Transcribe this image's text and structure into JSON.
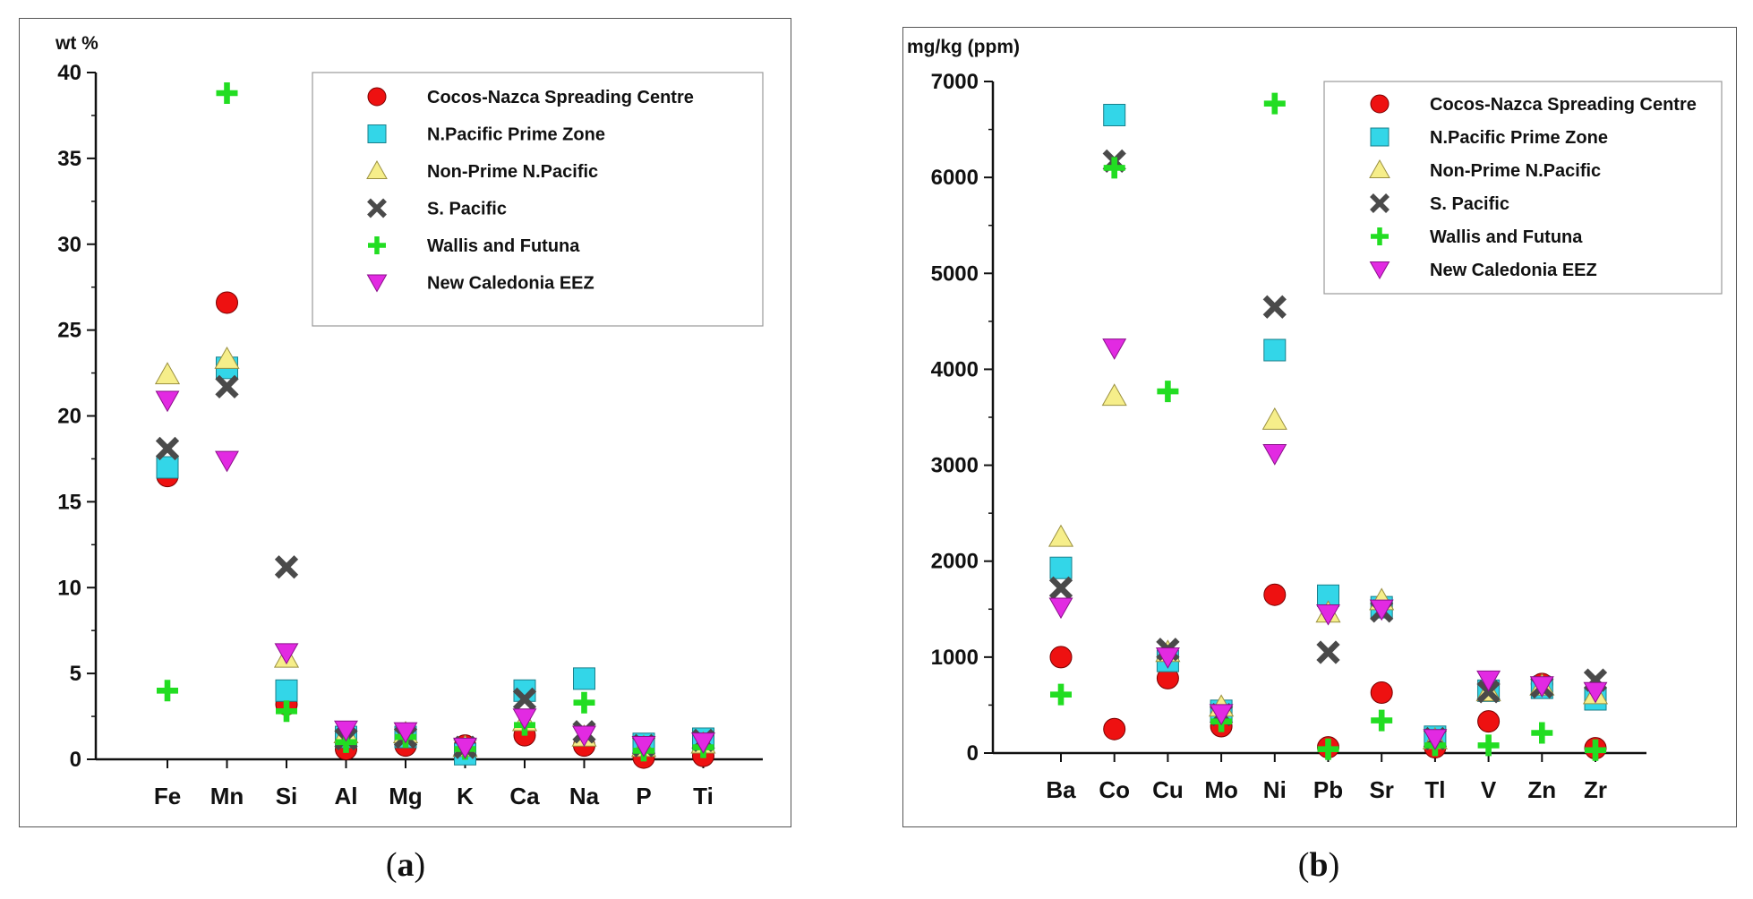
{
  "series_styles": [
    {
      "name": "Cocos-Nazca Spreading Centre",
      "marker": "circle",
      "color": "#ee1111"
    },
    {
      "name": "N.Pacific Prime Zone",
      "marker": "square",
      "color": "#33d6e8"
    },
    {
      "name": "Non-Prime N.Pacific",
      "marker": "triangle-up",
      "color": "#f6ee8a"
    },
    {
      "name": "S. Pacific",
      "marker": "x",
      "color": "#4a4a4a"
    },
    {
      "name": "Wallis and Futuna",
      "marker": "plus",
      "color": "#22dd22"
    },
    {
      "name": "New Caledonia EEZ",
      "marker": "triangle-down",
      "color": "#e22ae2"
    }
  ],
  "captions": {
    "a": "a",
    "b": "b"
  },
  "chart_data": [
    {
      "type": "scatter",
      "panel": "a",
      "ylabel": "wt %",
      "categories": [
        "Fe",
        "Mn",
        "Si",
        "Al",
        "Mg",
        "K",
        "Ca",
        "Na",
        "P",
        "Ti"
      ],
      "ylim": [
        0,
        40
      ],
      "yticks": [
        0,
        5,
        10,
        15,
        20,
        25,
        30,
        35,
        40
      ],
      "legend_position": "top-right",
      "series": [
        {
          "name": "Cocos-Nazca Spreading Centre",
          "values": [
            16.5,
            26.6,
            3.2,
            0.6,
            0.8,
            0.8,
            1.4,
            0.8,
            0.1,
            0.2
          ]
        },
        {
          "name": "N.Pacific Prime Zone",
          "values": [
            17.0,
            22.8,
            4.0,
            1.3,
            1.3,
            0.3,
            4.0,
            4.7,
            0.9,
            1.2
          ]
        },
        {
          "name": "Non-Prime N.Pacific",
          "values": [
            22.4,
            23.3,
            5.9,
            1.5,
            1.5,
            0.7,
            2.2,
            1.3,
            0.7,
            0.9
          ]
        },
        {
          "name": "S. Pacific",
          "values": [
            18.1,
            21.7,
            11.2,
            1.2,
            1.3,
            0.7,
            3.5,
            1.6,
            0.8,
            1.1
          ]
        },
        {
          "name": "Wallis and Futuna",
          "values": [
            4.0,
            38.8,
            2.8,
            1.0,
            1.3,
            0.6,
            2.0,
            3.3,
            0.5,
            0.7
          ]
        },
        {
          "name": "New Caledonia EEZ",
          "values": [
            20.9,
            17.4,
            6.2,
            1.7,
            1.6,
            0.7,
            2.4,
            1.4,
            0.8,
            1.0
          ]
        }
      ]
    },
    {
      "type": "scatter",
      "panel": "b",
      "ylabel": "mg/kg (ppm)",
      "categories": [
        "Ba",
        "Co",
        "Cu",
        "Mo",
        "Ni",
        "Pb",
        "Sr",
        "Tl",
        "V",
        "Zn",
        "Zr"
      ],
      "ylim": [
        0,
        7000
      ],
      "yticks": [
        0,
        1000,
        2000,
        3000,
        4000,
        5000,
        6000,
        7000
      ],
      "legend_position": "top-right",
      "series": [
        {
          "name": "Cocos-Nazca Spreading Centre",
          "values": [
            1000,
            250,
            780,
            280,
            1650,
            60,
            630,
            60,
            330,
            720,
            50
          ]
        },
        {
          "name": "N.Pacific Prime Zone",
          "values": [
            1930,
            6650,
            960,
            440,
            4200,
            1640,
            1520,
            170,
            650,
            680,
            560
          ]
        },
        {
          "name": "Non-Prime N.Pacific",
          "values": [
            2250,
            3720,
            1050,
            480,
            3470,
            1460,
            1590,
            140,
            640,
            700,
            610
          ]
        },
        {
          "name": "S. Pacific",
          "values": [
            1720,
            6170,
            1080,
            400,
            4650,
            1050,
            1480,
            150,
            640,
            690,
            760
          ]
        },
        {
          "name": "Wallis and Futuna",
          "values": [
            610,
            6100,
            3770,
            330,
            6770,
            40,
            340,
            80,
            80,
            210,
            30
          ]
        },
        {
          "name": "New Caledonia EEZ",
          "values": [
            1520,
            4220,
            1000,
            410,
            3120,
            1450,
            1500,
            150,
            760,
            700,
            640
          ]
        }
      ]
    }
  ]
}
